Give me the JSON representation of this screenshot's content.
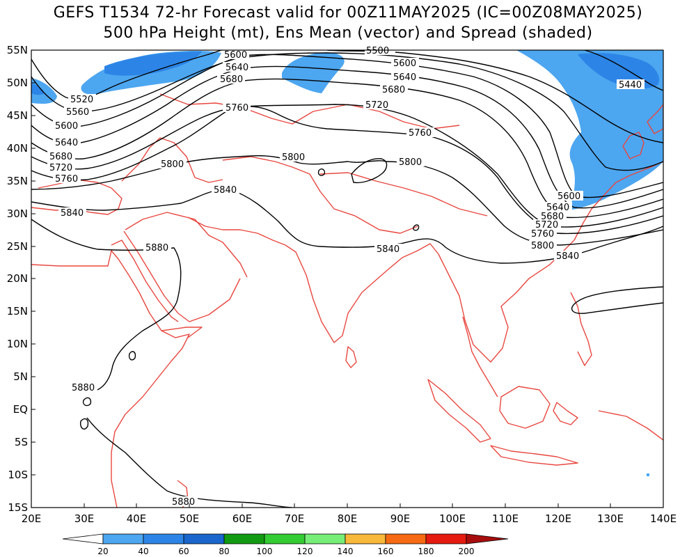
{
  "title": {
    "line1": "GEFS T1534 72-hr Forecast valid for 00Z11MAY2025 (IC=00Z08MAY2025)",
    "line2": "500 hPa Height (mt), Ens Mean (vector) and Spread (shaded)"
  },
  "map": {
    "lat_labels": [
      "55N",
      "50N",
      "45N",
      "40N",
      "35N",
      "30N",
      "25N",
      "20N",
      "15N",
      "10N",
      "5N",
      "EQ",
      "5S",
      "10S",
      "15S"
    ],
    "lon_labels": [
      "20E",
      "30E",
      "40E",
      "50E",
      "60E",
      "70E",
      "80E",
      "90E",
      "100E",
      "110E",
      "120E",
      "130E",
      "140E"
    ],
    "contour_labels": [
      "5600",
      "5640",
      "5680",
      "5760",
      "5720",
      "5560",
      "5520",
      "5440",
      "5800",
      "5840",
      "5880",
      "5500"
    ],
    "colors": {
      "coastline": "#e8473f",
      "contour": "#000000",
      "spread_20_40": "#4da6f0",
      "spread_40_60": "#2c85e6"
    }
  },
  "colorbar": {
    "labels": [
      "20",
      "40",
      "60",
      "80",
      "100",
      "120",
      "140",
      "160",
      "180",
      "200"
    ],
    "colors": [
      "#ffffff",
      "#4da6f0",
      "#2c85e6",
      "#1a66cc",
      "#129a12",
      "#33cc33",
      "#77ee77",
      "#f8b93b",
      "#f56a12",
      "#e51a10",
      "#a80d0d"
    ]
  }
}
